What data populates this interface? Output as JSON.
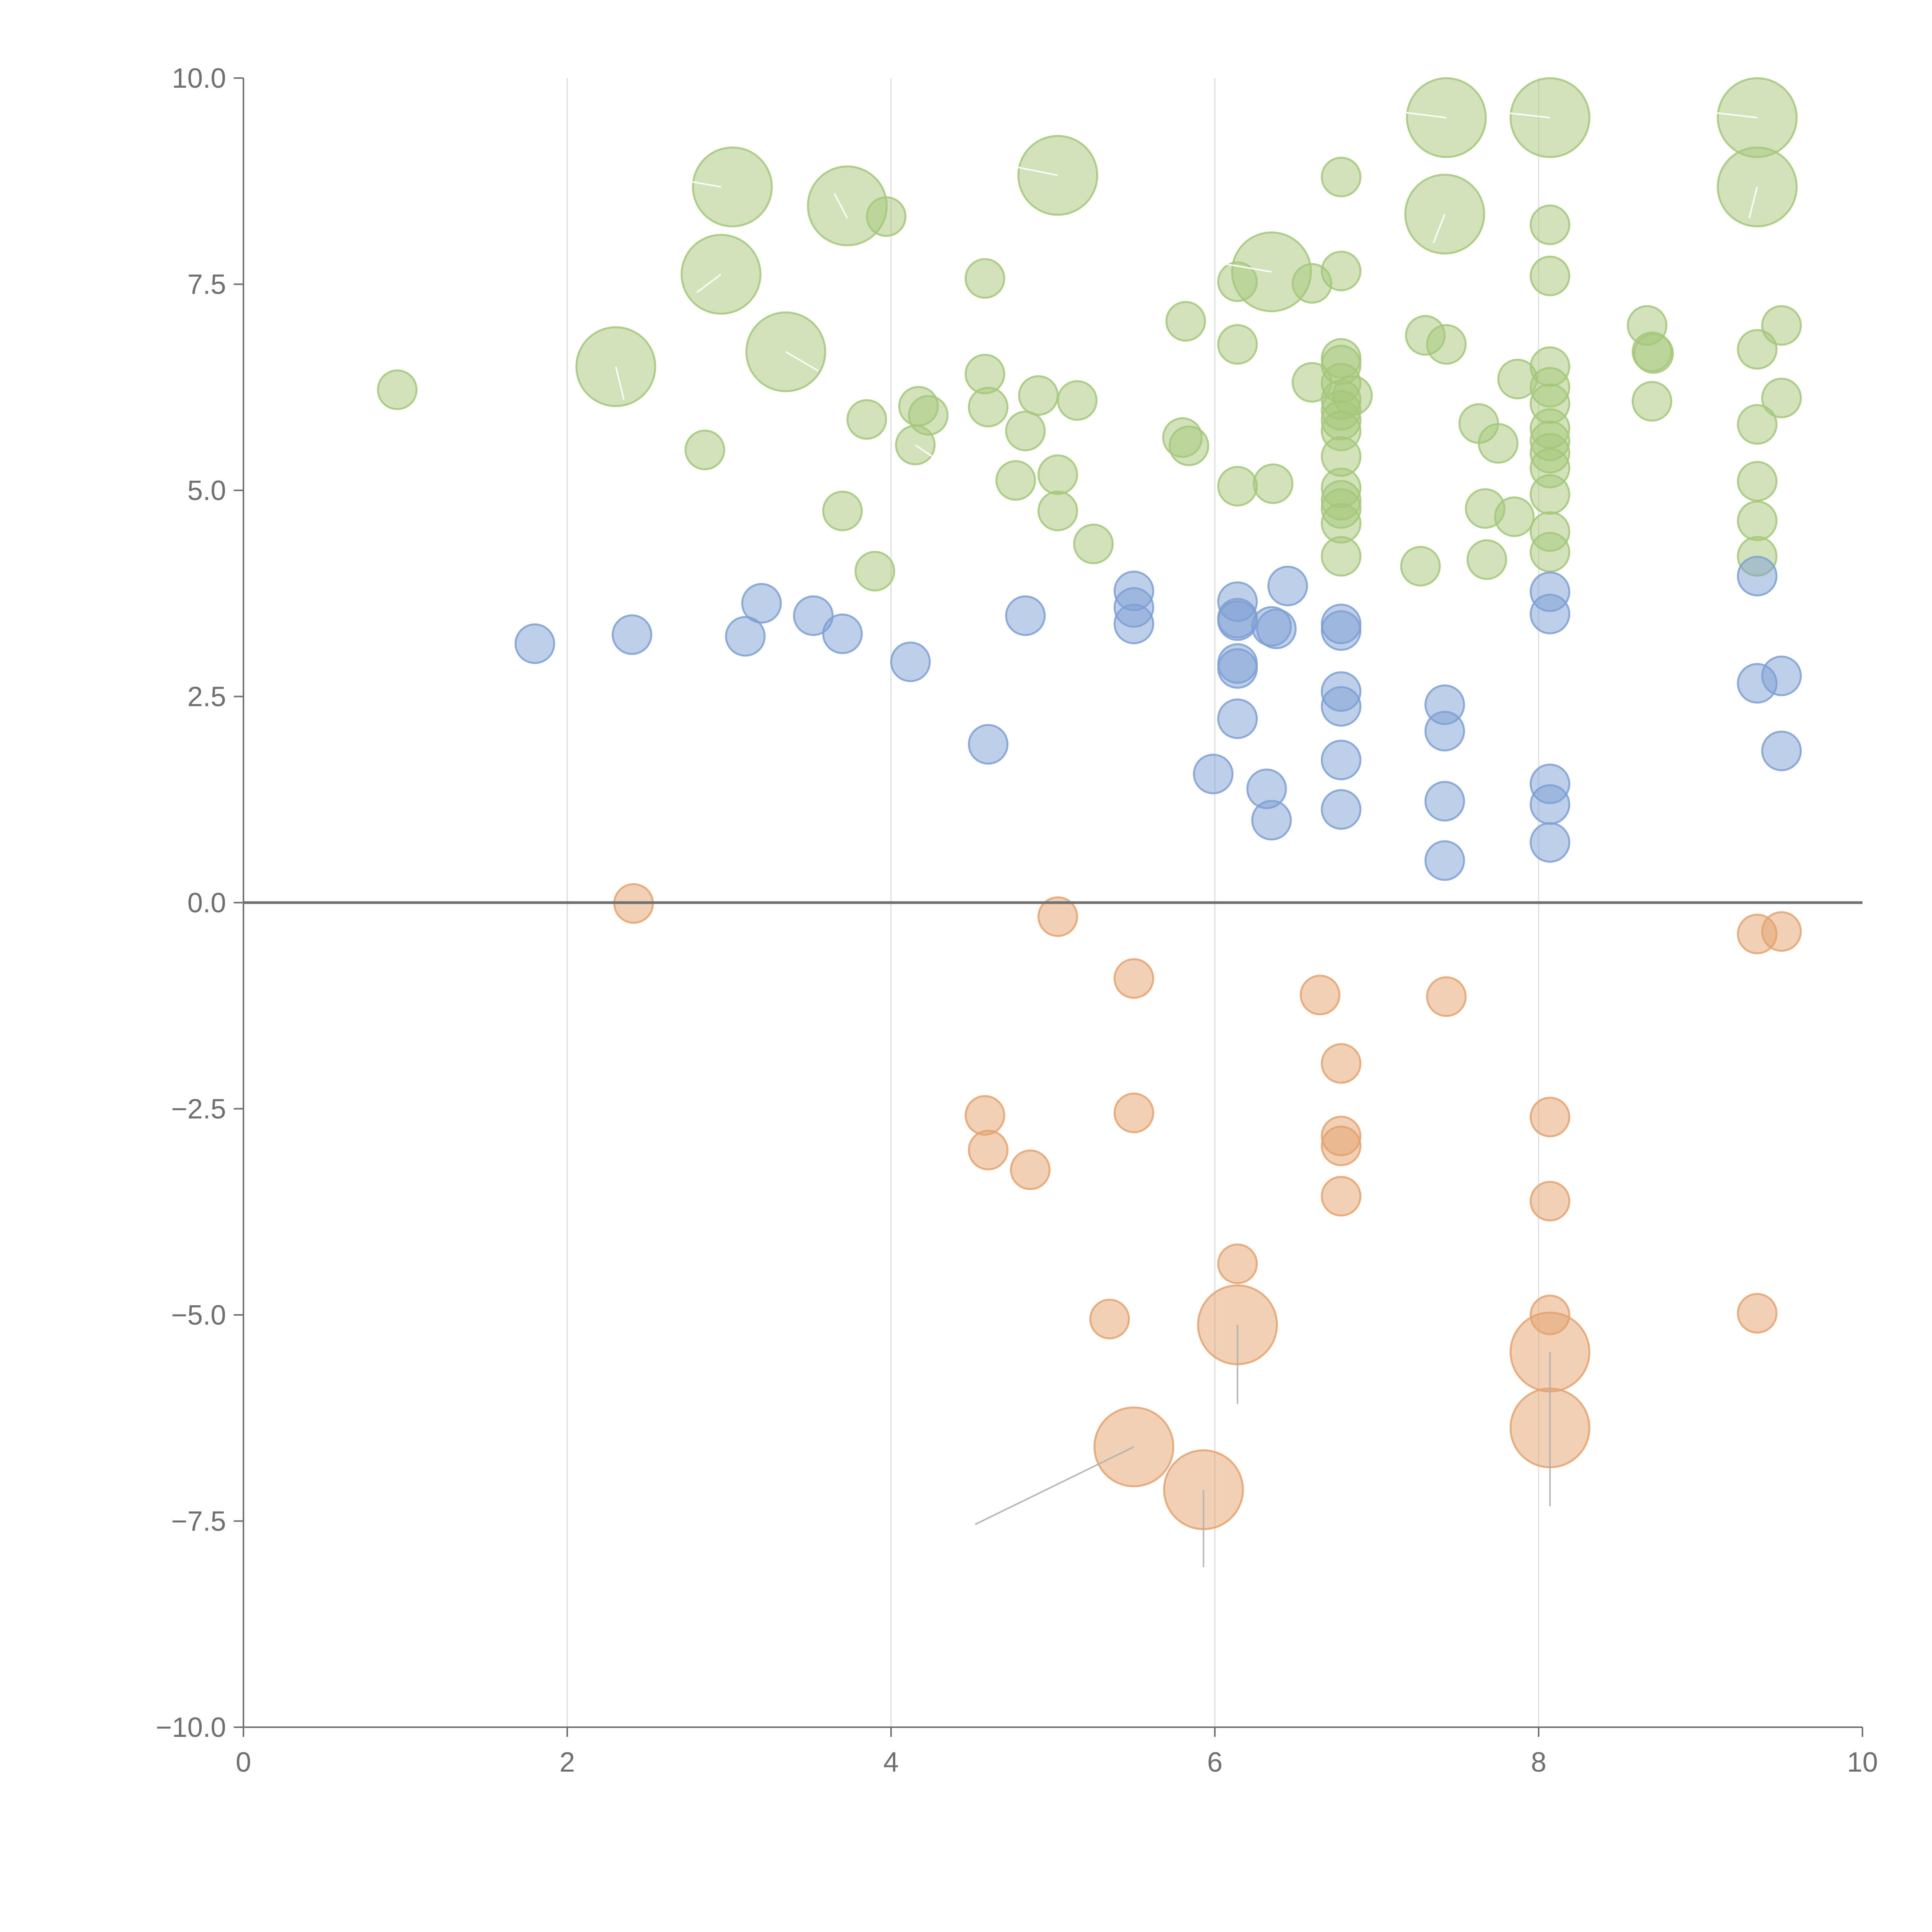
{
  "chart_data": {
    "type": "scatter",
    "title": "",
    "xlabel": "",
    "ylabel": "",
    "xlim": [
      0,
      10
    ],
    "ylim": [
      -10,
      10
    ],
    "x_ticks": [
      "0",
      "2",
      "4",
      "6",
      "8",
      "10"
    ],
    "y_ticks": [
      "10.0",
      "7.5",
      "5.0",
      "2.5",
      "0.0",
      "−2.5",
      "−5.0",
      "−7.5",
      "−10.0"
    ],
    "x_tick_values": [
      0,
      2,
      4,
      6,
      8,
      10
    ],
    "y_tick_values": [
      10,
      7.5,
      5,
      2.5,
      0,
      -2.5,
      -5,
      -7.5,
      -10
    ],
    "vertical_grid": true,
    "horizontal_grid": false,
    "reference_line_y": 0,
    "colors": {
      "green": "#a5c77a",
      "blue": "#7e9fd3",
      "orange": "#e4a26e",
      "leader": "#b0b0b0"
    },
    "series": [
      {
        "name": "green",
        "color": "#a5c77a",
        "points": [
          [
            0.95,
            6.22,
            1
          ],
          [
            2.85,
            5.49,
            1
          ],
          [
            3.7,
            4.75,
            1
          ],
          [
            3.85,
            5.86,
            1
          ],
          [
            3.9,
            4.02,
            1
          ],
          [
            3.97,
            8.32,
            1
          ],
          [
            4.15,
            5.55,
            1
          ],
          [
            4.17,
            6.02,
            1
          ],
          [
            4.23,
            5.91,
            1
          ],
          [
            4.58,
            7.57,
            1
          ],
          [
            4.58,
            6.41,
            1
          ],
          [
            4.6,
            6.01,
            1
          ],
          [
            4.77,
            5.12,
            1
          ],
          [
            4.83,
            5.72,
            1
          ],
          [
            4.91,
            6.15,
            1
          ],
          [
            5.03,
            5.19,
            1
          ],
          [
            5.03,
            4.75,
            1
          ],
          [
            5.15,
            6.09,
            1
          ],
          [
            5.25,
            4.35,
            1
          ],
          [
            5.82,
            7.05,
            1
          ],
          [
            5.8,
            5.64,
            1
          ],
          [
            5.84,
            5.54,
            1
          ],
          [
            6.14,
            7.53,
            1
          ],
          [
            6.14,
            6.77,
            1
          ],
          [
            6.14,
            5.05,
            1
          ],
          [
            6.36,
            5.08,
            1
          ],
          [
            6.6,
            6.31,
            1
          ],
          [
            6.6,
            7.51,
            1
          ],
          [
            6.78,
            8.8,
            1
          ],
          [
            6.78,
            7.66,
            1
          ],
          [
            6.78,
            6.6,
            1
          ],
          [
            6.78,
            6.52,
            1
          ],
          [
            6.78,
            6.3,
            1
          ],
          [
            6.78,
            6.1,
            1
          ],
          [
            6.78,
            5.97,
            1
          ],
          [
            6.78,
            5.85,
            1
          ],
          [
            6.78,
            5.72,
            1
          ],
          [
            6.78,
            5.41,
            1
          ],
          [
            6.78,
            5.03,
            1
          ],
          [
            6.78,
            4.88,
            1
          ],
          [
            6.78,
            4.78,
            1
          ],
          [
            6.78,
            4.6,
            1
          ],
          [
            6.78,
            4.2,
            1
          ],
          [
            6.85,
            6.15,
            1
          ],
          [
            7.27,
            4.08,
            1
          ],
          [
            7.3,
            6.88,
            1
          ],
          [
            7.43,
            6.77,
            1
          ],
          [
            7.63,
            5.81,
            1
          ],
          [
            7.67,
            4.78,
            1
          ],
          [
            7.68,
            4.16,
            1
          ],
          [
            7.75,
            5.57,
            1
          ],
          [
            7.87,
            6.35,
            1
          ],
          [
            7.85,
            4.68,
            1
          ],
          [
            8.07,
            8.22,
            1
          ],
          [
            8.07,
            7.6,
            1
          ],
          [
            8.07,
            6.5,
            1
          ],
          [
            8.07,
            6.25,
            1
          ],
          [
            8.07,
            6.05,
            1
          ],
          [
            8.07,
            5.75,
            1
          ],
          [
            8.07,
            5.6,
            1
          ],
          [
            8.07,
            5.45,
            1
          ],
          [
            8.07,
            5.27,
            1
          ],
          [
            8.07,
            4.95,
            1
          ],
          [
            8.07,
            4.5,
            1
          ],
          [
            8.07,
            4.25,
            1
          ],
          [
            8.67,
            7.0,
            1
          ],
          [
            8.7,
            6.68,
            1
          ],
          [
            8.71,
            6.66,
            1
          ],
          [
            8.7,
            6.08,
            1
          ],
          [
            9.35,
            6.71,
            1
          ],
          [
            9.35,
            5.8,
            1
          ],
          [
            9.35,
            5.11,
            1
          ],
          [
            9.35,
            4.63,
            1
          ],
          [
            9.35,
            4.2,
            1
          ],
          [
            9.5,
            7.0,
            1
          ],
          [
            9.5,
            6.12,
            1
          ],
          [
            2.3,
            6.5,
            2
          ],
          [
            2.95,
            7.62,
            2
          ],
          [
            3.02,
            8.68,
            2
          ],
          [
            3.35,
            6.68,
            2
          ],
          [
            3.73,
            8.45,
            2
          ],
          [
            5.03,
            8.82,
            2
          ],
          [
            6.35,
            7.65,
            2
          ],
          [
            7.43,
            9.52,
            2
          ],
          [
            7.42,
            8.35,
            2
          ],
          [
            8.07,
            9.52,
            2
          ],
          [
            9.35,
            9.52,
            2
          ],
          [
            9.35,
            8.68,
            2
          ]
        ]
      },
      {
        "name": "blue",
        "color": "#7e9fd3",
        "points": [
          [
            1.8,
            3.14,
            1
          ],
          [
            2.4,
            3.25,
            1
          ],
          [
            3.1,
            3.23,
            1
          ],
          [
            3.2,
            3.63,
            1
          ],
          [
            3.52,
            3.48,
            1
          ],
          [
            3.7,
            3.26,
            1
          ],
          [
            4.12,
            2.92,
            1
          ],
          [
            4.6,
            1.92,
            1
          ],
          [
            4.83,
            3.48,
            1
          ],
          [
            5.5,
            3.78,
            1
          ],
          [
            5.5,
            3.58,
            1
          ],
          [
            5.5,
            3.38,
            1
          ],
          [
            5.99,
            1.56,
            1
          ],
          [
            6.14,
            3.65,
            1
          ],
          [
            6.14,
            3.45,
            1
          ],
          [
            6.14,
            3.42,
            1
          ],
          [
            6.14,
            2.9,
            1
          ],
          [
            6.14,
            2.84,
            1
          ],
          [
            6.14,
            2.23,
            1
          ],
          [
            6.32,
            1.38,
            1
          ],
          [
            6.35,
            1.0,
            1
          ],
          [
            6.35,
            3.35,
            1
          ],
          [
            6.38,
            3.32,
            1
          ],
          [
            6.45,
            3.84,
            1
          ],
          [
            6.78,
            3.38,
            1
          ],
          [
            6.78,
            3.3,
            1
          ],
          [
            6.78,
            2.56,
            1
          ],
          [
            6.78,
            2.38,
            1
          ],
          [
            6.78,
            1.73,
            1
          ],
          [
            6.78,
            1.13,
            1
          ],
          [
            7.42,
            2.4,
            1
          ],
          [
            7.42,
            2.08,
            1
          ],
          [
            7.42,
            1.23,
            1
          ],
          [
            7.42,
            0.51,
            1
          ],
          [
            8.07,
            3.77,
            1
          ],
          [
            8.07,
            3.5,
            1
          ],
          [
            8.07,
            1.44,
            1
          ],
          [
            8.07,
            1.19,
            1
          ],
          [
            8.07,
            0.73,
            1
          ],
          [
            9.35,
            3.96,
            1
          ],
          [
            9.35,
            2.66,
            1
          ],
          [
            9.5,
            2.75,
            1
          ],
          [
            9.5,
            1.84,
            1
          ]
        ]
      },
      {
        "name": "orange",
        "color": "#e4a26e",
        "points": [
          [
            2.41,
            -0.01,
            1
          ],
          [
            5.03,
            -0.17,
            1
          ],
          [
            5.5,
            -0.92,
            1
          ],
          [
            6.65,
            -1.12,
            1
          ],
          [
            7.43,
            -1.14,
            1
          ],
          [
            6.78,
            -1.95,
            1
          ],
          [
            4.58,
            -2.58,
            1
          ],
          [
            5.5,
            -2.55,
            1
          ],
          [
            4.6,
            -3.0,
            1
          ],
          [
            4.86,
            -3.24,
            1
          ],
          [
            6.78,
            -2.83,
            1
          ],
          [
            6.78,
            -2.95,
            1
          ],
          [
            6.78,
            -3.56,
            1
          ],
          [
            8.07,
            -2.6,
            1
          ],
          [
            8.07,
            -3.62,
            1
          ],
          [
            6.14,
            -4.38,
            1
          ],
          [
            5.35,
            -5.05,
            1
          ],
          [
            8.07,
            -5.0,
            1
          ],
          [
            9.35,
            -0.38,
            1
          ],
          [
            9.5,
            -0.35,
            1
          ],
          [
            9.35,
            -4.98,
            1
          ],
          [
            6.14,
            -5.12,
            2
          ],
          [
            8.07,
            -5.45,
            2
          ],
          [
            8.07,
            -6.37,
            2
          ],
          [
            5.5,
            -6.6,
            2
          ],
          [
            5.93,
            -7.12,
            2
          ]
        ]
      }
    ],
    "leader_lines": [
      [
        2.95,
        8.68,
        2.6,
        8.8,
        "#ffffff"
      ],
      [
        3.73,
        8.3,
        3.65,
        8.6,
        "#ffffff"
      ],
      [
        5.03,
        8.82,
        4.7,
        8.95,
        "#ffffff"
      ],
      [
        7.43,
        9.52,
        7.1,
        9.6,
        "#ffffff"
      ],
      [
        8.07,
        9.52,
        7.7,
        9.6,
        "#ffffff"
      ],
      [
        9.35,
        9.52,
        9.0,
        9.6,
        "#ffffff"
      ],
      [
        9.35,
        8.68,
        9.3,
        8.3,
        "#ffffff"
      ],
      [
        7.42,
        8.35,
        7.35,
        8.0,
        "#ffffff"
      ],
      [
        6.35,
        7.65,
        6.05,
        7.75,
        "#ffffff"
      ],
      [
        2.95,
        7.62,
        2.8,
        7.4,
        "#ffffff"
      ],
      [
        3.35,
        6.68,
        3.55,
        6.45,
        "#ffffff"
      ],
      [
        2.3,
        6.5,
        2.35,
        6.1,
        "#ffffff"
      ],
      [
        4.15,
        5.55,
        4.3,
        5.35,
        "#ffffff"
      ],
      [
        6.14,
        -5.12,
        6.14,
        -6.08,
        "#b0b0b0"
      ],
      [
        8.07,
        -5.45,
        8.07,
        -7.32,
        "#b0b0b0"
      ],
      [
        5.5,
        -6.6,
        4.52,
        -7.54,
        "#b0b0b0"
      ],
      [
        5.93,
        -7.12,
        5.93,
        -8.06,
        "#b0b0b0"
      ]
    ]
  }
}
